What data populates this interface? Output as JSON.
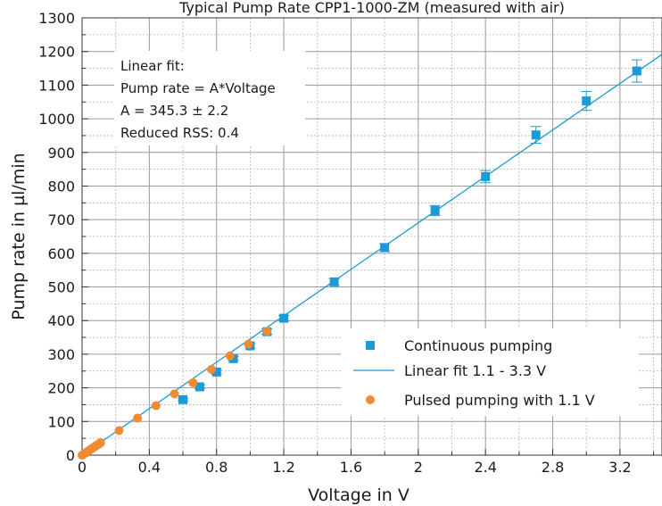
{
  "chart_data": {
    "type": "scatter",
    "title": "Typical Pump Rate CPP1-1000-ZM (measured with air)",
    "xlabel": "Voltage in V",
    "ylabel": "Pump rate in µl/min",
    "xlim": [
      0,
      3.45
    ],
    "ylim": [
      0,
      1300
    ],
    "xticks": [
      "0",
      "0.4",
      "0.8",
      "1.2",
      "1.6",
      "2",
      "2.4",
      "2.8",
      "3.2"
    ],
    "xtick_values": [
      0,
      0.4,
      0.8,
      1.2,
      1.6,
      2.0,
      2.4,
      2.8,
      3.2
    ],
    "yticks": [
      "0",
      "100",
      "200",
      "300",
      "400",
      "500",
      "600",
      "700",
      "800",
      "900",
      "1000",
      "1100",
      "1200",
      "1300"
    ],
    "ytick_values": [
      0,
      100,
      200,
      300,
      400,
      500,
      600,
      700,
      800,
      900,
      1000,
      1100,
      1200,
      1300
    ],
    "grid": true,
    "fit_box": {
      "lines": [
        "Linear fit:",
        "Pump rate = A*Voltage",
        "A = 345.3 ± 2.2",
        "Reduced RSS: 0.4"
      ]
    },
    "series": [
      {
        "name": "Continuous pumping",
        "marker": "square",
        "color": "#1a9ad6",
        "x": [
          0.6,
          0.7,
          0.8,
          0.9,
          1.0,
          1.1,
          1.2,
          1.5,
          1.8,
          2.1,
          2.4,
          2.7,
          3.0,
          3.3
        ],
        "y": [
          165,
          203,
          247,
          287,
          325,
          367,
          407,
          515,
          617,
          727,
          828,
          952,
          1053,
          1142
        ],
        "yerr": [
          4,
          5,
          6,
          6,
          7,
          8,
          8,
          10,
          12,
          15,
          18,
          25,
          28,
          33
        ]
      },
      {
        "name": "Linear fit 1.1 - 3.3 V",
        "marker": "line",
        "color": "#1a9ad6",
        "x": [
          0,
          3.45
        ],
        "y": [
          0,
          1191.3
        ]
      },
      {
        "name": "Pulsed pumping with 1.1 V",
        "marker": "circle",
        "color": "#f28a30",
        "x": [
          0.0,
          0.01,
          0.02,
          0.03,
          0.04,
          0.05,
          0.06,
          0.07,
          0.08,
          0.09,
          0.1,
          0.11,
          0.22,
          0.33,
          0.44,
          0.55,
          0.66,
          0.77,
          0.88,
          0.99,
          1.1
        ],
        "y": [
          0,
          3,
          6,
          10,
          13,
          17,
          20,
          23,
          27,
          30,
          33,
          37,
          73,
          110,
          147,
          182,
          215,
          255,
          295,
          330,
          368
        ]
      }
    ],
    "legend": {
      "placement": "bottom-right",
      "entries": [
        "Continuous pumping",
        "Linear fit 1.1 - 3.3 V",
        "Pulsed pumping with 1.1 V"
      ]
    }
  }
}
